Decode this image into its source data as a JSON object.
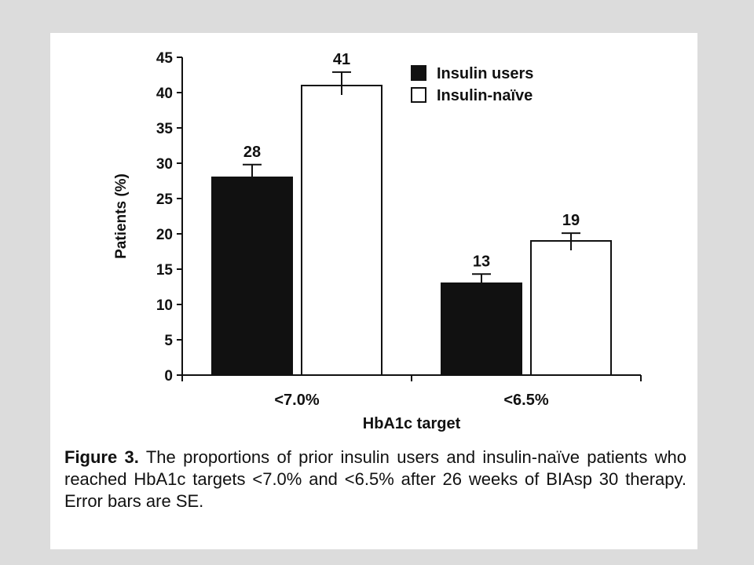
{
  "chart_data": {
    "type": "bar",
    "categories": [
      "<7.0%",
      "<6.5%"
    ],
    "series": [
      {
        "name": "Insulin users",
        "values": [
          28,
          13
        ],
        "error": [
          1.8,
          1.3
        ],
        "color": "#111111"
      },
      {
        "name": "Insulin-naïve",
        "values": [
          41,
          19
        ],
        "error": [
          1.9,
          1.1
        ],
        "color": "#ffffff"
      }
    ],
    "data_labels": [
      [
        "28",
        "13"
      ],
      [
        "41",
        "19"
      ]
    ],
    "xlabel": "HbA1c target",
    "ylabel": "Patients (%)",
    "ylim": [
      0,
      45
    ],
    "yticks": [
      0,
      5,
      10,
      15,
      20,
      25,
      30,
      35,
      40,
      45
    ],
    "legend_position": "top-right",
    "grid": false
  },
  "caption": {
    "label": "Figure 3.",
    "text": " The proportions of prior insulin users and insulin-naïve patients who reached HbA1c targets <7.0% and <6.5% after 26 weeks of BIAsp 30 therapy. Error bars are SE."
  }
}
